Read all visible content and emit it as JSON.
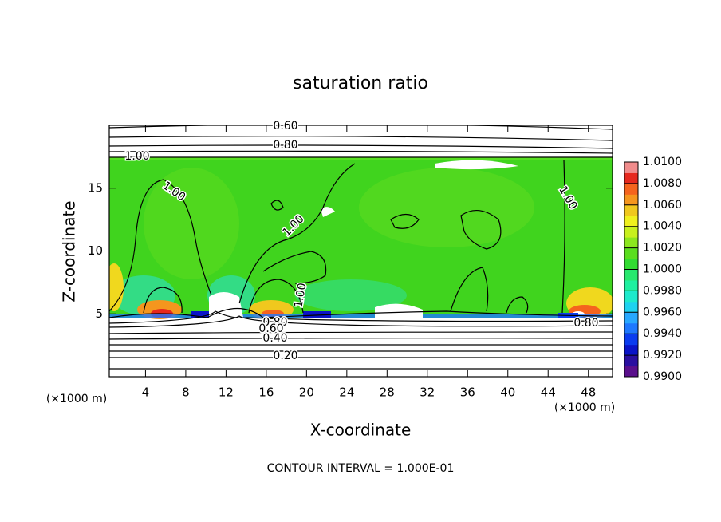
{
  "chart_data": {
    "type": "contour",
    "title": "saturation ratio",
    "x_label": "X-coordinate",
    "y_label": "Z-coordinate",
    "x_unit": "(×1000 m)",
    "y_unit": "(×1000 m)",
    "xlim": [
      0.4,
      50.4
    ],
    "ylim": [
      0,
      20
    ],
    "xticks": [
      4,
      8,
      12,
      16,
      20,
      24,
      28,
      32,
      36,
      40,
      44,
      48
    ],
    "yticks": [
      5,
      10,
      15
    ],
    "colorbar": {
      "lim": [
        0.99,
        1.01
      ],
      "ticks": [
        {
          "value": 0.99,
          "label": "0.9900"
        },
        {
          "value": 0.992,
          "label": "0.9920"
        },
        {
          "value": 0.994,
          "label": "0.9940"
        },
        {
          "value": 0.996,
          "label": "0.9960"
        },
        {
          "value": 0.998,
          "label": "0.9980"
        },
        {
          "value": 1.0,
          "label": "1.0000"
        },
        {
          "value": 1.002,
          "label": "1.0020"
        },
        {
          "value": 1.004,
          "label": "1.0040"
        },
        {
          "value": 1.006,
          "label": "1.0060"
        },
        {
          "value": 1.008,
          "label": "1.0080"
        },
        {
          "value": 1.01,
          "label": "1.0100"
        }
      ],
      "colors": [
        "#5a0f8c",
        "#2a0fa0",
        "#0a14c8",
        "#0a3cf0",
        "#1e78ff",
        "#28a8ff",
        "#1ed2f0",
        "#1eeacc",
        "#1ef0a0",
        "#28e86e",
        "#32dc32",
        "#5ade1e",
        "#8ce61e",
        "#c8f01e",
        "#f0f01e",
        "#f0c81e",
        "#f5961e",
        "#f5641e",
        "#e6281e",
        "#f08c8c"
      ]
    },
    "contour_labels": [
      "0.60",
      "0.80",
      "1.00",
      "1.00",
      "1.00",
      "1.00",
      "1.00",
      "0.80",
      "0.60",
      "0.40",
      "0.20",
      "0.80"
    ],
    "footnote": "CONTOUR INTERVAL = 1.000E-01"
  }
}
